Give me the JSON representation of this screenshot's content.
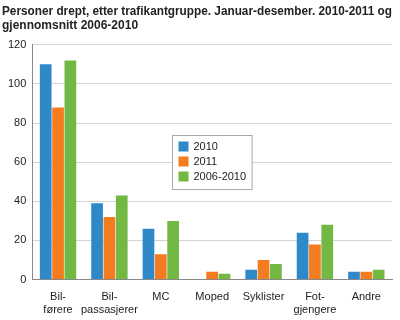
{
  "chart_data": {
    "type": "bar",
    "title": [
      "Personer drept, etter trafikantgruppe. Januar-desember. 2010-2011 og",
      "gjennomsnitt 2006-2010"
    ],
    "categories": [
      [
        "Bil-",
        "førere"
      ],
      [
        "Bil-",
        "passasjerer"
      ],
      "MC",
      "Moped",
      "Syklister",
      [
        "Fot-",
        "gjengere"
      ],
      "Andre"
    ],
    "series": [
      {
        "name": "2010",
        "color": "#2f89c9",
        "values": [
          110,
          39,
          26,
          0,
          5,
          24,
          4
        ]
      },
      {
        "name": "2011",
        "color": "#f47c20",
        "values": [
          88,
          32,
          13,
          4,
          10,
          18,
          4
        ]
      },
      {
        "name": "2006-2010",
        "color": "#72b843",
        "values": [
          112,
          43,
          30,
          3,
          8,
          28,
          5
        ]
      }
    ],
    "ylim": [
      0,
      120
    ],
    "yticks": [
      0,
      20,
      40,
      60,
      80,
      100,
      120
    ],
    "grid": true,
    "legend": "center"
  }
}
